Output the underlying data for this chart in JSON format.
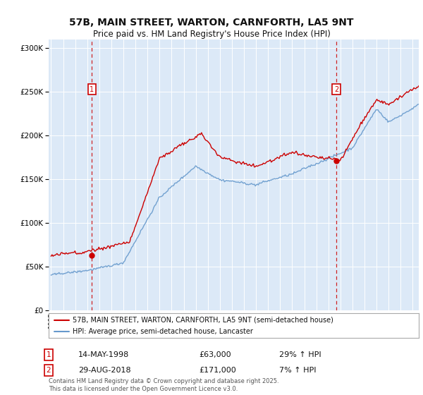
{
  "title": "57B, MAIN STREET, WARTON, CARNFORTH, LA5 9NT",
  "subtitle": "Price paid vs. HM Land Registry's House Price Index (HPI)",
  "legend_line1": "57B, MAIN STREET, WARTON, CARNFORTH, LA5 9NT (semi-detached house)",
  "legend_line2": "HPI: Average price, semi-detached house, Lancaster",
  "annotation1_date": "14-MAY-1998",
  "annotation1_price": "£63,000",
  "annotation1_hpi": "29% ↑ HPI",
  "annotation2_date": "29-AUG-2018",
  "annotation2_price": "£171,000",
  "annotation2_hpi": "7% ↑ HPI",
  "footer": "Contains HM Land Registry data © Crown copyright and database right 2025.\nThis data is licensed under the Open Government Licence v3.0.",
  "outer_bg_color": "#f0f4fa",
  "plot_bg_color": "#dce9f7",
  "grid_color": "#ffffff",
  "red_line_color": "#cc0000",
  "blue_line_color": "#6699cc",
  "sale1_year": 1998.37,
  "sale1_price": 63000,
  "sale2_year": 2018.66,
  "sale2_price": 171000,
  "ylim": [
    0,
    310000
  ],
  "xlim_start": 1994.8,
  "xlim_end": 2025.5
}
